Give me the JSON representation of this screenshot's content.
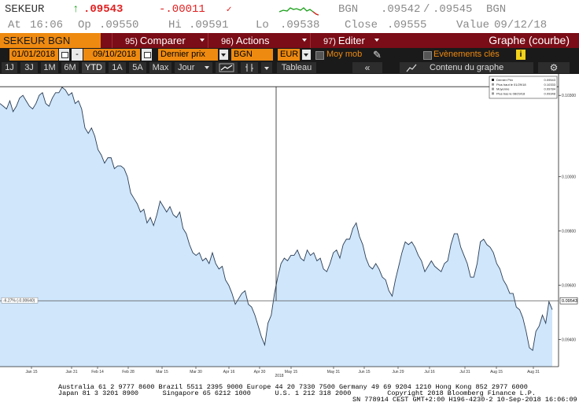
{
  "quote": {
    "ticker": "SEKEUR",
    "arrow": "↑",
    "last": ".09543",
    "change": "-.00011",
    "source1": "BGN",
    "bid": ".09542",
    "sep": "/",
    "ask": ".09545",
    "source2": "BGN",
    "at_label": "At",
    "at_time": "16:06",
    "op_label": "Op",
    "op_value": ".09550",
    "hi_label": "Hi",
    "hi_value": ".09591",
    "lo_label": "Lo",
    "lo_value": ".09538",
    "close_label": "Close",
    "close_value": ".09555",
    "value_label": "Value",
    "value_date": "09/12/18"
  },
  "titlebar": {
    "security": "SEKEUR BGN Curncy",
    "comparer_num": "95)",
    "comparer": "Comparer",
    "actions_num": "96)",
    "actions": "Actions",
    "editer_num": "97)",
    "editer": "Editer",
    "graph_title": "Graphe (courbe)"
  },
  "params": {
    "start_date": "01/01/2018",
    "dash": "-",
    "end_date": "09/10/2018",
    "price_type": "Dernier prix",
    "source": "BGN",
    "currency": "EUR",
    "moy_mob": "Moy mob",
    "evenements": "Evènements clés",
    "info": "i"
  },
  "periods": {
    "items": [
      "1J",
      "3J",
      "1M",
      "6M",
      "YTD",
      "1A",
      "5A",
      "Max"
    ],
    "active": "YTD",
    "interval": "Jour",
    "tableau": "Tableau",
    "contenu": "Contenu du graphe"
  },
  "colors": {
    "accent_orange": "#ef8a10",
    "title_maroon": "#7a0d17",
    "area_fill": "#cfe6fb",
    "line": "#2a3d55",
    "hline": "#222222"
  },
  "chart_data": {
    "type": "area",
    "ylim": [
      0.093,
      0.1035
    ],
    "x_tick_labels": [
      "Jan 15",
      "Jan 31",
      "Feb 14",
      "Feb 28",
      "Mar 15",
      "Mar 30",
      "Apr 16",
      "Apr 30",
      "May 15",
      "May 31",
      "Jun 15",
      "Jun 29",
      "Jul 16",
      "Jul 31",
      "Aug 15",
      "Aug 31"
    ],
    "year_label": "2018",
    "y_ticks": [
      0.103,
      0.1,
      0.098,
      0.096,
      0.094
    ],
    "y_tick_labels": [
      "0.10300",
      "0.10000",
      "0.09800",
      "0.09600",
      "0.09400"
    ],
    "high_line": 0.10332,
    "last_price": 0.09543,
    "last_price_label": "0.09543",
    "pct_label": "-6.27% (-0.00640)",
    "series": [
      {
        "values": [
          0.1027,
          0.1026,
          0.1025,
          0.1028,
          0.1024,
          0.1026,
          0.1029,
          0.103,
          0.1028,
          0.1026,
          0.1025,
          0.1027,
          0.103,
          0.1031,
          0.1027,
          0.1026,
          0.1029,
          0.1031,
          0.1031,
          0.1033,
          0.1032,
          0.103,
          0.1031,
          0.1027,
          0.1028,
          0.1025,
          0.1018,
          0.1016,
          0.1018,
          0.1015,
          0.101,
          0.1008,
          0.1005,
          0.1007,
          0.1007,
          0.1003,
          0.1004,
          0.1004,
          0.1003,
          0.1,
          0.0994,
          0.0992,
          0.099,
          0.0987,
          0.0988,
          0.0983,
          0.0985,
          0.0982,
          0.0986,
          0.0991,
          0.0989,
          0.0987,
          0.0989,
          0.0986,
          0.0985,
          0.0987,
          0.0981,
          0.0979,
          0.0975,
          0.0972,
          0.0971,
          0.0972,
          0.0969,
          0.097,
          0.0968,
          0.0972,
          0.0968,
          0.0966,
          0.0967,
          0.0962,
          0.096,
          0.0957,
          0.0953,
          0.0955,
          0.0957,
          0.0958,
          0.0953,
          0.0952,
          0.0949,
          0.0945,
          0.0941,
          0.0938,
          0.0946,
          0.0949,
          0.0957,
          0.0963,
          0.0968,
          0.097,
          0.0969,
          0.0971,
          0.0971,
          0.0973,
          0.097,
          0.0969,
          0.0973,
          0.0971,
          0.0972,
          0.0969,
          0.097,
          0.0966,
          0.0965,
          0.0968,
          0.0972,
          0.0973,
          0.097,
          0.0975,
          0.0977,
          0.0977,
          0.0981,
          0.0983,
          0.0978,
          0.0975,
          0.097,
          0.0967,
          0.0966,
          0.0968,
          0.0966,
          0.0963,
          0.0962,
          0.0958,
          0.0956,
          0.0962,
          0.0967,
          0.0972,
          0.0976,
          0.0975,
          0.0976,
          0.0974,
          0.0971,
          0.0969,
          0.0965,
          0.0967,
          0.0969,
          0.0967,
          0.0966,
          0.0965,
          0.0968,
          0.0969,
          0.0975,
          0.0979,
          0.0979,
          0.0974,
          0.0971,
          0.0968,
          0.0963,
          0.0963,
          0.0968,
          0.0976,
          0.0977,
          0.0975,
          0.0974,
          0.0972,
          0.0968,
          0.0966,
          0.0962,
          0.096,
          0.0957,
          0.0957,
          0.0952,
          0.0951,
          0.0948,
          0.0943,
          0.0937,
          0.0936,
          0.0943,
          0.0945,
          0.0949,
          0.0946,
          0.0954,
          0.0951
        ]
      }
    ],
    "legend": {
      "items": [
        {
          "name": "Dernier Prix",
          "value": "0.09543"
        },
        {
          "name": "Plus haut le 01/29/18",
          "value": "0.10333"
        },
        {
          "name": "Moyenne",
          "value": "0.09784"
        },
        {
          "name": "Plus bas le 08/29/18",
          "value": "0.09348"
        }
      ],
      "placement": "top-right"
    }
  },
  "footer": {
    "line1": "Australia 61 2 9777 8600 Brazil 5511 2395 9000 Europe 44 20 7330 7500 Germany 49 69 9204 1210 Hong Kong 852 2977 6000",
    "line2": "Japan 81 3 3201 8900      Singapore 65 6212 1000      U.S. 1 212 318 2000         Copyright 2018 Bloomberg Finance L.P.",
    "line3": "SN 778914 CEST GMT+2:00 H196-4230-2 10-Sep-2018 16:06:09"
  }
}
